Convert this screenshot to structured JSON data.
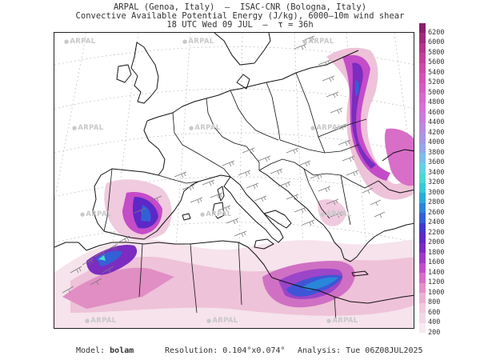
{
  "header": {
    "line1": "ARPAL (Genoa, Italy)  —  ISAC-CNR (Bologna, Italy)",
    "line2": "Convective Available Potential Energy (J/kg), 6000–10m wind shear",
    "line3": "18 UTC Wed 09 JUL  –  τ = 36h"
  },
  "watermark_text": "ARPAL",
  "colorbar": {
    "labels": [
      "6200",
      "6000",
      "5800",
      "5600",
      "5400",
      "5200",
      "5000",
      "4800",
      "4600",
      "4400",
      "4200",
      "4000",
      "3800",
      "3600",
      "3400",
      "3200",
      "3000",
      "2800",
      "2600",
      "2400",
      "2200",
      "2000",
      "1800",
      "1600",
      "1400",
      "1200",
      "1000",
      "800",
      "600",
      "400",
      "200"
    ],
    "colors": [
      "#8a1e6a",
      "#a02a7c",
      "#b5338c",
      "#c43d98",
      "#cf47a6",
      "#d452b2",
      "#d65cc0",
      "#d868cc",
      "#d672d6",
      "#c87cdc",
      "#b98ae0",
      "#a896e2",
      "#94a6e6",
      "#7cbce8",
      "#63d2e4",
      "#4cd8d2",
      "#36c9d6",
      "#28acd8",
      "#2b86d8",
      "#3460d6",
      "#4338cf",
      "#5e28c6",
      "#7c2cc0",
      "#a03ac4",
      "#c44cc8",
      "#d86ec8",
      "#e490c8",
      "#eab2d2",
      "#f0cade",
      "#f2d8e6",
      "#f8eaf1"
    ]
  },
  "footer": {
    "model_label": "Model:",
    "model_value": "bolam",
    "resolution_label": "Resolution:",
    "resolution_value": "0.104°x0.074°",
    "analysis_label": "Analysis:",
    "analysis_value": "Tue 06Z08JUL2025"
  }
}
